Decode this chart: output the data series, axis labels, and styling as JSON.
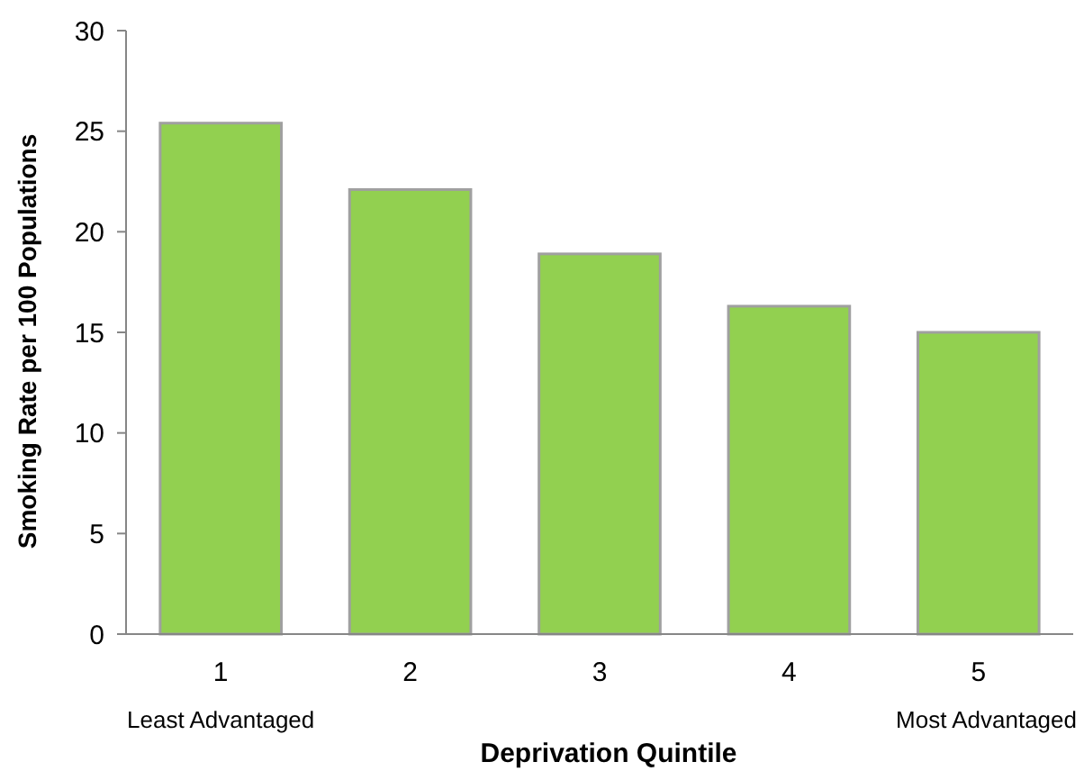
{
  "chart_data": {
    "type": "bar",
    "xlabel": "Deprivation Quintile",
    "ylabel": "Smoking Rate per 100 Populations",
    "categories": [
      "1",
      "2",
      "3",
      "4",
      "5"
    ],
    "values": [
      25.4,
      22.1,
      18.9,
      16.3,
      15.0
    ],
    "color": "#92d050",
    "ylim": [
      0,
      30
    ],
    "yticks": [
      0,
      5,
      10,
      15,
      20,
      25,
      30
    ],
    "grid": false,
    "annotations": [
      "Least Advantaged",
      "Most Advantaged"
    ]
  }
}
